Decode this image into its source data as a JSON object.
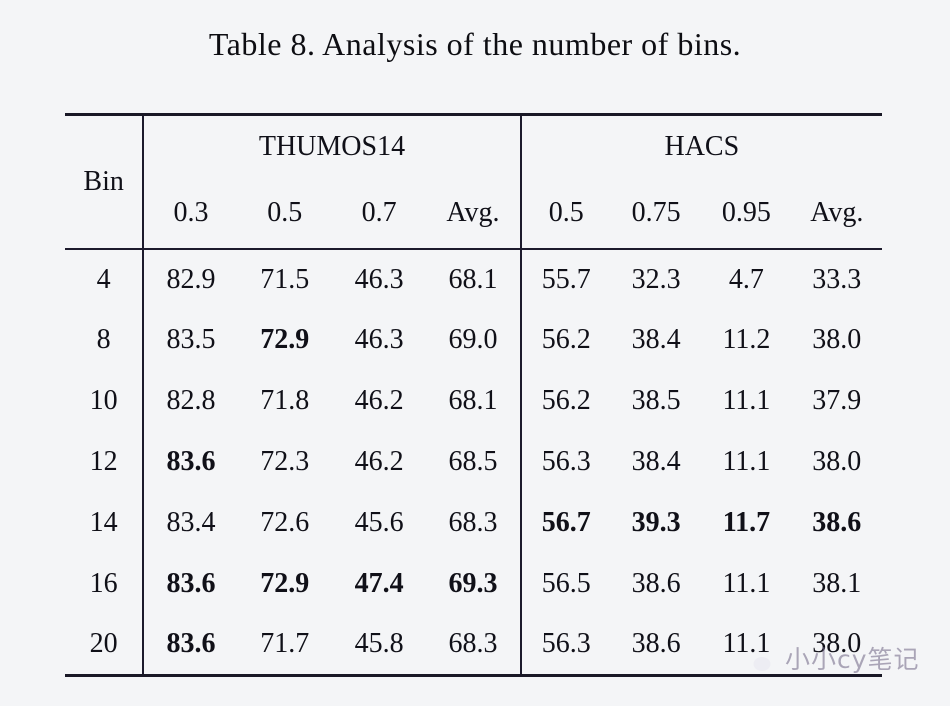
{
  "title": "Table 8. Analysis of the number of bins.",
  "table": {
    "bin_header": "Bin",
    "groups": [
      {
        "label": "THUMOS14",
        "subheaders": [
          "0.3",
          "0.5",
          "0.7",
          "Avg."
        ]
      },
      {
        "label": "HACS",
        "subheaders": [
          "0.5",
          "0.75",
          "0.95",
          "Avg."
        ]
      }
    ],
    "rows": [
      {
        "bin": "4",
        "cells": [
          {
            "t": "82.9"
          },
          {
            "t": "71.5"
          },
          {
            "t": "46.3"
          },
          {
            "t": "68.1"
          },
          {
            "t": "55.7"
          },
          {
            "t": "32.3"
          },
          {
            "t": "4.7"
          },
          {
            "t": "33.3"
          }
        ]
      },
      {
        "bin": "8",
        "cells": [
          {
            "t": "83.5"
          },
          {
            "t": "72.9",
            "b": true
          },
          {
            "t": "46.3"
          },
          {
            "t": "69.0"
          },
          {
            "t": "56.2"
          },
          {
            "t": "38.4"
          },
          {
            "t": "11.2"
          },
          {
            "t": "38.0"
          }
        ]
      },
      {
        "bin": "10",
        "cells": [
          {
            "t": "82.8"
          },
          {
            "t": "71.8"
          },
          {
            "t": "46.2"
          },
          {
            "t": "68.1"
          },
          {
            "t": "56.2"
          },
          {
            "t": "38.5"
          },
          {
            "t": "11.1"
          },
          {
            "t": "37.9"
          }
        ]
      },
      {
        "bin": "12",
        "cells": [
          {
            "t": "83.6",
            "b": true
          },
          {
            "t": "72.3"
          },
          {
            "t": "46.2"
          },
          {
            "t": "68.5"
          },
          {
            "t": "56.3"
          },
          {
            "t": "38.4"
          },
          {
            "t": "11.1"
          },
          {
            "t": "38.0"
          }
        ]
      },
      {
        "bin": "14",
        "cells": [
          {
            "t": "83.4"
          },
          {
            "t": "72.6"
          },
          {
            "t": "45.6"
          },
          {
            "t": "68.3"
          },
          {
            "t": "56.7",
            "b": true
          },
          {
            "t": "39.3",
            "b": true
          },
          {
            "t": "11.7",
            "b": true
          },
          {
            "t": "38.6",
            "b": true
          }
        ]
      },
      {
        "bin": "16",
        "cells": [
          {
            "t": "83.6",
            "b": true
          },
          {
            "t": "72.9",
            "b": true
          },
          {
            "t": "47.4",
            "b": true
          },
          {
            "t": "69.3",
            "b": true
          },
          {
            "t": "56.5"
          },
          {
            "t": "38.6"
          },
          {
            "t": "11.1"
          },
          {
            "t": "38.1"
          }
        ]
      },
      {
        "bin": "20",
        "cells": [
          {
            "t": "83.6",
            "b": true
          },
          {
            "t": "71.7"
          },
          {
            "t": "45.8"
          },
          {
            "t": "68.3"
          },
          {
            "t": "56.3"
          },
          {
            "t": "38.6"
          },
          {
            "t": "11.1"
          },
          {
            "t": "38.0"
          }
        ]
      }
    ]
  },
  "watermark": {
    "text": "小小cy笔记",
    "icon": "paw-icon",
    "color": "#6e6484"
  }
}
